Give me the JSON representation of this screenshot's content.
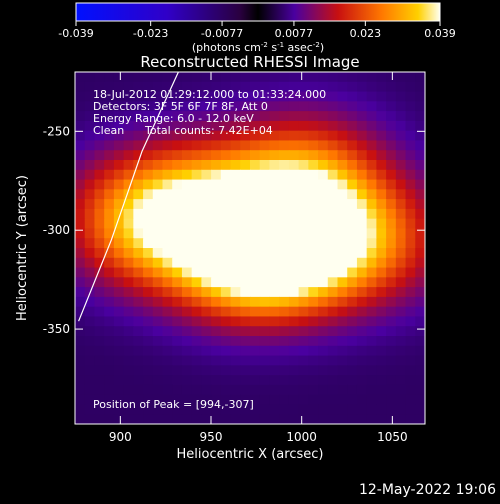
{
  "colorbar": {
    "tick_labels": [
      "-0.039",
      "-0.023",
      "-0.0077",
      "0.0077",
      "0.023",
      "0.039"
    ],
    "ticks": [
      -0.039,
      -0.023,
      -0.0077,
      0.0077,
      0.023,
      0.039
    ],
    "range": [
      -0.039,
      0.039
    ],
    "units_main": "(photons cm",
    "units_sup1": "-2",
    "units_mid": " s",
    "units_sup2": "-1",
    "units_mid2": " asec",
    "units_sup3": "-2",
    "units_end": ")"
  },
  "chart_data": {
    "type": "heatmap",
    "title": "Reconstructed RHESSI Image",
    "xlabel": "Heliocentric X (arcsec)",
    "ylabel": "Heliocentric Y (arcsec)",
    "xlim": [
      875,
      1068
    ],
    "ylim": [
      -398,
      -220
    ],
    "xticks": [
      900,
      950,
      1000,
      1050
    ],
    "xtick_labels": [
      "900",
      "950",
      "1000",
      "1050"
    ],
    "yticks": [
      -250,
      -300,
      -350
    ],
    "ytick_labels": [
      "-250",
      "-300",
      "-350"
    ],
    "annotations": [
      "18-Jul-2012 01:29:12.000 to 01:33:24.000",
      "Detectors: 3F 5F 6F 7F 8F, Att 0",
      "Energy Range: 6.0 - 12.0 keV",
      "Clean",
      "Total counts: 7.42E+04"
    ],
    "peak_label": "Position of Peak = [994,-307]",
    "peak": [
      994,
      -307
    ],
    "sources": [
      {
        "x": 994,
        "y": -305,
        "amp": 0.036
      },
      {
        "x": 968,
        "y": -312,
        "amp": 0.028
      },
      {
        "x": 915,
        "y": -295,
        "amp": 0.026
      },
      {
        "x": 1003,
        "y": -272,
        "amp": 0.018
      },
      {
        "x": 1038,
        "y": -305,
        "amp": 0.016
      },
      {
        "x": 950,
        "y": -285,
        "amp": 0.015
      }
    ],
    "limb": [
      [
        877,
        -346
      ],
      [
        895,
        -305
      ],
      [
        912,
        -260
      ],
      [
        932,
        -220
      ]
    ]
  },
  "footer": {
    "date": "12-May-2022 19:06"
  }
}
